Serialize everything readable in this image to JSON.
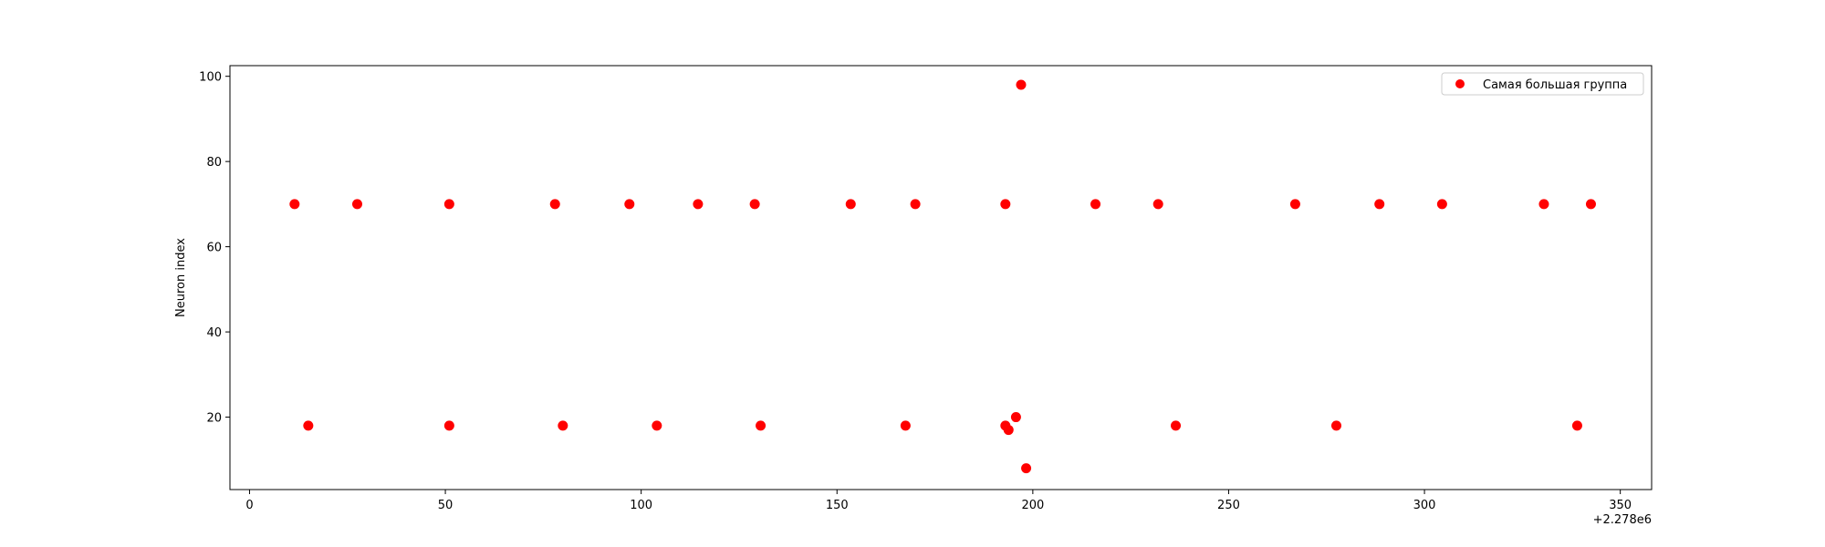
{
  "chart_data": {
    "type": "scatter",
    "title": "",
    "xlabel": "",
    "ylabel": "Neuron index",
    "x_offset_label": "+2.278e6",
    "xlim": [
      -5,
      358
    ],
    "ylim": [
      3,
      102.5
    ],
    "xticks": [
      0,
      50,
      100,
      150,
      200,
      250,
      300,
      350
    ],
    "yticks": [
      20,
      40,
      60,
      80,
      100
    ],
    "grid": false,
    "legend_position": "upper right",
    "series": [
      {
        "name": "Самая большая группа",
        "color": "#ff0000",
        "marker": "circle",
        "points": [
          {
            "x": 11.5,
            "y": 70
          },
          {
            "x": 15,
            "y": 18
          },
          {
            "x": 27.5,
            "y": 70
          },
          {
            "x": 51,
            "y": 70
          },
          {
            "x": 51,
            "y": 18
          },
          {
            "x": 78,
            "y": 70
          },
          {
            "x": 80,
            "y": 18
          },
          {
            "x": 97,
            "y": 70
          },
          {
            "x": 104,
            "y": 18
          },
          {
            "x": 114.5,
            "y": 70
          },
          {
            "x": 129,
            "y": 70
          },
          {
            "x": 130.5,
            "y": 18
          },
          {
            "x": 153.5,
            "y": 70
          },
          {
            "x": 167.5,
            "y": 18
          },
          {
            "x": 170,
            "y": 70
          },
          {
            "x": 193,
            "y": 70
          },
          {
            "x": 193,
            "y": 18
          },
          {
            "x": 193.8,
            "y": 17
          },
          {
            "x": 195.7,
            "y": 20
          },
          {
            "x": 197,
            "y": 98
          },
          {
            "x": 198.3,
            "y": 8
          },
          {
            "x": 216,
            "y": 70
          },
          {
            "x": 232,
            "y": 70
          },
          {
            "x": 236.5,
            "y": 18
          },
          {
            "x": 267,
            "y": 70
          },
          {
            "x": 277.5,
            "y": 18
          },
          {
            "x": 288.5,
            "y": 70
          },
          {
            "x": 304.5,
            "y": 70
          },
          {
            "x": 330.5,
            "y": 70
          },
          {
            "x": 339,
            "y": 18
          },
          {
            "x": 342.5,
            "y": 70
          }
        ]
      }
    ]
  }
}
